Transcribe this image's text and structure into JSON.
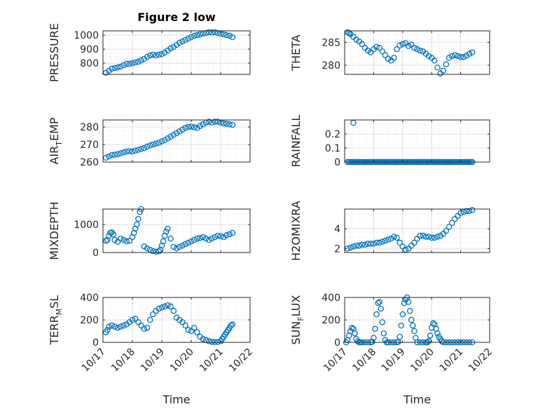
{
  "figure": {
    "title": "Figure 2 low"
  },
  "colors": {
    "marker": "#0072BD",
    "axis": "#262626",
    "grid": "#dfdfdf"
  },
  "chart_data": [
    {
      "type": "scatter",
      "id": "pressure",
      "ylabel": {
        "main": "PRESSURE",
        "sub": "",
        "tail": ""
      },
      "xlim": [
        0,
        5
      ],
      "ylim": [
        720,
        1030
      ],
      "yticks": [
        800,
        900,
        1000
      ],
      "xticks": [],
      "xticklabels": [],
      "grid": true,
      "x": [
        0.1,
        0.2,
        0.3,
        0.4,
        0.5,
        0.6,
        0.7,
        0.8,
        0.9,
        1.0,
        1.1,
        1.2,
        1.3,
        1.4,
        1.5,
        1.6,
        1.7,
        1.8,
        1.9,
        2.0,
        2.1,
        2.2,
        2.3,
        2.4,
        2.5,
        2.6,
        2.7,
        2.8,
        2.9,
        3.0,
        3.1,
        3.2,
        3.3,
        3.4,
        3.5,
        3.6,
        3.7,
        3.8,
        3.9,
        4.0,
        4.1,
        4.2,
        4.3,
        4.4
      ],
      "y": [
        732,
        745,
        760,
        765,
        770,
        775,
        785,
        795,
        795,
        800,
        805,
        810,
        820,
        830,
        845,
        855,
        860,
        855,
        860,
        865,
        875,
        890,
        905,
        915,
        930,
        945,
        955,
        965,
        975,
        985,
        995,
        1000,
        1005,
        1010,
        1015,
        1020,
        1018,
        1020,
        1015,
        1010,
        1005,
        1000,
        995,
        985
      ]
    },
    {
      "type": "scatter",
      "id": "theta",
      "ylabel": {
        "main": "THETA",
        "sub": "",
        "tail": ""
      },
      "xlim": [
        0,
        5
      ],
      "ylim": [
        278,
        287.5
      ],
      "yticks": [
        280,
        285
      ],
      "xticks": [],
      "xticklabels": [],
      "grid": true,
      "x": [
        0.1,
        0.15,
        0.2,
        0.3,
        0.4,
        0.5,
        0.6,
        0.7,
        0.8,
        0.9,
        1.0,
        1.1,
        1.2,
        1.3,
        1.4,
        1.5,
        1.6,
        1.7,
        1.8,
        1.9,
        2.0,
        2.1,
        2.2,
        2.3,
        2.4,
        2.5,
        2.6,
        2.7,
        2.8,
        2.9,
        3.0,
        3.1,
        3.2,
        3.3,
        3.4,
        3.5,
        3.6,
        3.7,
        3.8,
        3.9,
        4.0,
        4.1,
        4.2,
        4.3,
        4.4
      ],
      "y": [
        287.2,
        287.0,
        286.8,
        286.2,
        285.6,
        285.2,
        284.6,
        283.8,
        283.2,
        282.8,
        283.5,
        284.0,
        283.8,
        283.0,
        282.2,
        281.4,
        281.0,
        281.6,
        283.5,
        284.3,
        284.6,
        284.8,
        284.2,
        284.5,
        283.8,
        283.5,
        283.2,
        283.0,
        282.5,
        282.0,
        281.6,
        281.0,
        279.5,
        278.2,
        278.8,
        280.2,
        281.6,
        282.0,
        282.2,
        282.0,
        281.8,
        281.8,
        282.1,
        282.5,
        282.8
      ]
    },
    {
      "type": "scatter",
      "id": "air_temp",
      "ylabel": {
        "main": "AIR",
        "sub": "T",
        "tail": "EMP"
      },
      "xlim": [
        0,
        5
      ],
      "ylim": [
        260,
        284
      ],
      "yticks": [
        260,
        270,
        280
      ],
      "xticks": [],
      "xticklabels": [],
      "grid": true,
      "x": [
        0.1,
        0.2,
        0.3,
        0.4,
        0.5,
        0.6,
        0.7,
        0.8,
        0.9,
        1.0,
        1.1,
        1.2,
        1.3,
        1.4,
        1.5,
        1.6,
        1.7,
        1.8,
        1.9,
        2.0,
        2.1,
        2.2,
        2.3,
        2.4,
        2.5,
        2.6,
        2.7,
        2.8,
        2.9,
        3.0,
        3.1,
        3.2,
        3.3,
        3.4,
        3.5,
        3.6,
        3.7,
        3.8,
        3.9,
        4.0,
        4.1,
        4.2,
        4.3,
        4.4
      ],
      "y": [
        262.5,
        263.2,
        264.0,
        264.2,
        264.5,
        265.0,
        265.5,
        266.0,
        266.2,
        266.0,
        266.5,
        267.0,
        267.5,
        268.0,
        268.8,
        269.5,
        270.0,
        270.5,
        271.0,
        271.8,
        272.5,
        273.5,
        274.5,
        275.5,
        276.5,
        277.5,
        278.5,
        279.5,
        280.0,
        280.2,
        279.8,
        279.5,
        280.5,
        281.5,
        282.5,
        283.0,
        282.5,
        283.0,
        283.0,
        282.5,
        282.0,
        281.8,
        281.5,
        281.2
      ]
    },
    {
      "type": "scatter",
      "id": "rainfall",
      "ylabel": {
        "main": "RAINFALL",
        "sub": "",
        "tail": ""
      },
      "xlim": [
        0,
        5
      ],
      "ylim": [
        0,
        0.3
      ],
      "yticks": [
        0,
        0.1,
        0.2
      ],
      "xticks": [],
      "xticklabels": [],
      "grid": true,
      "x": [
        0.1,
        0.15,
        0.2,
        0.25,
        0.3,
        0.35,
        0.4,
        0.45,
        0.5,
        0.55,
        0.6,
        0.65,
        0.7,
        0.75,
        0.8,
        0.85,
        0.9,
        0.95,
        1.0,
        1.05,
        1.1,
        1.15,
        1.2,
        1.25,
        1.3,
        1.35,
        1.4,
        1.45,
        1.5,
        1.55,
        1.6,
        1.65,
        1.7,
        1.75,
        1.8,
        1.85,
        1.9,
        1.95,
        2.0,
        2.05,
        2.1,
        2.15,
        2.2,
        2.25,
        2.3,
        2.35,
        2.4,
        2.45,
        2.5,
        2.55,
        2.6,
        2.65,
        2.7,
        2.75,
        2.8,
        2.85,
        2.9,
        2.95,
        3.0,
        3.05,
        3.1,
        3.15,
        3.2,
        3.25,
        3.3,
        3.35,
        3.4,
        3.45,
        3.5,
        3.55,
        3.6,
        3.65,
        3.7,
        3.75,
        3.8,
        3.85,
        3.9,
        3.95,
        4.0,
        4.05,
        4.1,
        4.15,
        4.2,
        4.25,
        4.3,
        4.35,
        4.4,
        0.3
      ],
      "y": [
        0,
        0,
        0,
        0,
        0,
        0,
        0,
        0,
        0,
        0,
        0,
        0,
        0,
        0,
        0,
        0,
        0,
        0,
        0,
        0,
        0,
        0,
        0,
        0,
        0,
        0,
        0,
        0,
        0,
        0,
        0,
        0,
        0,
        0,
        0,
        0,
        0,
        0,
        0,
        0,
        0,
        0,
        0,
        0,
        0,
        0,
        0,
        0,
        0,
        0,
        0,
        0,
        0,
        0,
        0,
        0,
        0,
        0,
        0,
        0,
        0,
        0,
        0,
        0,
        0,
        0,
        0,
        0,
        0,
        0,
        0,
        0,
        0,
        0,
        0,
        0,
        0,
        0,
        0,
        0,
        0,
        0,
        0,
        0,
        0,
        0,
        0,
        0.28
      ]
    },
    {
      "type": "scatter",
      "id": "mixdepth",
      "ylabel": {
        "main": "MIXDEPTH",
        "sub": "",
        "tail": ""
      },
      "xlim": [
        0,
        5
      ],
      "ylim": [
        0,
        1550
      ],
      "yticks": [
        0,
        1000
      ],
      "xticks": [],
      "xticklabels": [],
      "grid": true,
      "x": [
        0.1,
        0.15,
        0.2,
        0.25,
        0.3,
        0.35,
        0.4,
        0.5,
        0.6,
        0.7,
        0.8,
        0.9,
        1.0,
        1.05,
        1.1,
        1.15,
        1.2,
        1.25,
        1.3,
        1.4,
        1.5,
        1.6,
        1.7,
        1.8,
        1.9,
        1.95,
        2.0,
        2.05,
        2.1,
        2.15,
        2.2,
        2.3,
        2.4,
        2.5,
        2.6,
        2.7,
        2.8,
        2.9,
        3.0,
        3.1,
        3.2,
        3.3,
        3.4,
        3.5,
        3.6,
        3.7,
        3.8,
        3.9,
        4.0,
        4.1,
        4.2,
        4.3,
        4.4
      ],
      "y": [
        420,
        450,
        600,
        700,
        720,
        650,
        450,
        380,
        500,
        450,
        400,
        420,
        550,
        700,
        850,
        1000,
        1200,
        1450,
        1550,
        220,
        150,
        100,
        50,
        30,
        40,
        100,
        250,
        400,
        600,
        750,
        850,
        500,
        200,
        150,
        200,
        250,
        300,
        350,
        400,
        450,
        500,
        520,
        550,
        500,
        450,
        500,
        550,
        600,
        580,
        550,
        620,
        650,
        700
      ]
    },
    {
      "type": "scatter",
      "id": "h2omixra",
      "ylabel": {
        "main": "H2OMIXRA",
        "sub": "",
        "tail": ""
      },
      "xlim": [
        0,
        5
      ],
      "ylim": [
        1.6,
        6.0
      ],
      "yticks": [
        2,
        4
      ],
      "xticks": [],
      "xticklabels": [],
      "grid": true,
      "x": [
        0.1,
        0.2,
        0.3,
        0.4,
        0.5,
        0.6,
        0.7,
        0.8,
        0.9,
        1.0,
        1.1,
        1.2,
        1.3,
        1.4,
        1.5,
        1.6,
        1.7,
        1.8,
        1.9,
        2.0,
        2.1,
        2.2,
        2.3,
        2.4,
        2.5,
        2.6,
        2.7,
        2.8,
        2.9,
        3.0,
        3.1,
        3.2,
        3.3,
        3.4,
        3.5,
        3.6,
        3.7,
        3.8,
        3.9,
        4.0,
        4.1,
        4.2,
        4.3,
        4.4
      ],
      "y": [
        2.0,
        2.1,
        2.2,
        2.3,
        2.3,
        2.4,
        2.4,
        2.5,
        2.5,
        2.5,
        2.6,
        2.6,
        2.7,
        2.8,
        2.9,
        3.0,
        3.2,
        3.1,
        2.6,
        2.2,
        1.9,
        2.0,
        2.3,
        2.6,
        3.0,
        3.3,
        3.3,
        3.2,
        3.2,
        3.1,
        3.1,
        3.2,
        3.3,
        3.5,
        3.8,
        4.2,
        4.6,
        5.0,
        5.3,
        5.6,
        5.7,
        5.8,
        5.8,
        5.9
      ]
    },
    {
      "type": "scatter",
      "id": "terr_msl",
      "ylabel": {
        "main": "TERR",
        "sub": "M",
        "tail": "SL"
      },
      "xlim": [
        0,
        5
      ],
      "ylim": [
        0,
        400
      ],
      "yticks": [
        0,
        200,
        400
      ],
      "xticks": [
        0,
        1,
        2,
        3,
        4,
        5
      ],
      "xticklabels": [
        "10/17",
        "10/18",
        "10/19",
        "10/20",
        "10/21",
        "10/22"
      ],
      "xlabel": "Time",
      "grid": true,
      "x": [
        0.1,
        0.15,
        0.2,
        0.3,
        0.4,
        0.5,
        0.6,
        0.7,
        0.8,
        0.9,
        1.0,
        1.1,
        1.2,
        1.3,
        1.4,
        1.5,
        1.6,
        1.7,
        1.8,
        1.9,
        2.0,
        2.1,
        2.2,
        2.3,
        2.4,
        2.5,
        2.6,
        2.7,
        2.8,
        2.9,
        3.0,
        3.1,
        3.2,
        3.3,
        3.4,
        3.5,
        3.6,
        3.7,
        3.8,
        3.9,
        4.0,
        4.05,
        4.1,
        4.15,
        4.2,
        4.25,
        4.3,
        4.35,
        4.4
      ],
      "y": [
        90,
        110,
        140,
        150,
        140,
        130,
        140,
        150,
        160,
        180,
        200,
        210,
        180,
        150,
        120,
        130,
        200,
        250,
        280,
        300,
        310,
        320,
        330,
        320,
        280,
        220,
        200,
        180,
        150,
        110,
        100,
        130,
        90,
        50,
        30,
        20,
        10,
        5,
        2,
        3,
        10,
        30,
        50,
        70,
        90,
        110,
        130,
        150,
        160
      ]
    },
    {
      "type": "scatter",
      "id": "sun_flux",
      "ylabel": {
        "main": "SUN",
        "sub": "F",
        "tail": "LUX"
      },
      "xlim": [
        0,
        5
      ],
      "ylim": [
        0,
        400
      ],
      "yticks": [
        0,
        200,
        400
      ],
      "xticks": [
        0,
        1,
        2,
        3,
        4,
        5
      ],
      "xticklabels": [
        "10/17",
        "10/18",
        "10/19",
        "10/20",
        "10/21",
        "10/22"
      ],
      "xlabel": "Time",
      "grid": true,
      "x": [
        0.05,
        0.1,
        0.15,
        0.2,
        0.25,
        0.3,
        0.35,
        0.4,
        0.45,
        0.5,
        0.55,
        0.6,
        0.7,
        0.8,
        0.9,
        0.95,
        1.0,
        1.05,
        1.1,
        1.15,
        1.2,
        1.25,
        1.3,
        1.35,
        1.4,
        1.45,
        1.5,
        1.6,
        1.7,
        1.8,
        1.85,
        1.9,
        1.95,
        2.0,
        2.05,
        2.1,
        2.15,
        2.2,
        2.25,
        2.3,
        2.35,
        2.4,
        2.45,
        2.5,
        2.6,
        2.7,
        2.8,
        2.85,
        2.9,
        2.95,
        3.0,
        3.05,
        3.1,
        3.15,
        3.2,
        3.25,
        3.3,
        3.35,
        3.4,
        3.5,
        3.6,
        3.7,
        3.8,
        3.9,
        4.0,
        4.1,
        4.2,
        4.3,
        4.4
      ],
      "y": [
        0,
        20,
        60,
        100,
        130,
        120,
        80,
        30,
        10,
        0,
        0,
        0,
        0,
        0,
        0,
        5,
        40,
        120,
        250,
        350,
        360,
        300,
        180,
        80,
        20,
        0,
        0,
        0,
        0,
        0,
        5,
        50,
        150,
        250,
        350,
        380,
        400,
        360,
        280,
        200,
        150,
        100,
        40,
        0,
        0,
        0,
        0,
        0,
        10,
        60,
        130,
        170,
        160,
        120,
        80,
        50,
        30,
        10,
        0,
        0,
        0,
        0,
        0,
        0,
        0,
        0,
        0,
        0,
        0
      ]
    }
  ]
}
